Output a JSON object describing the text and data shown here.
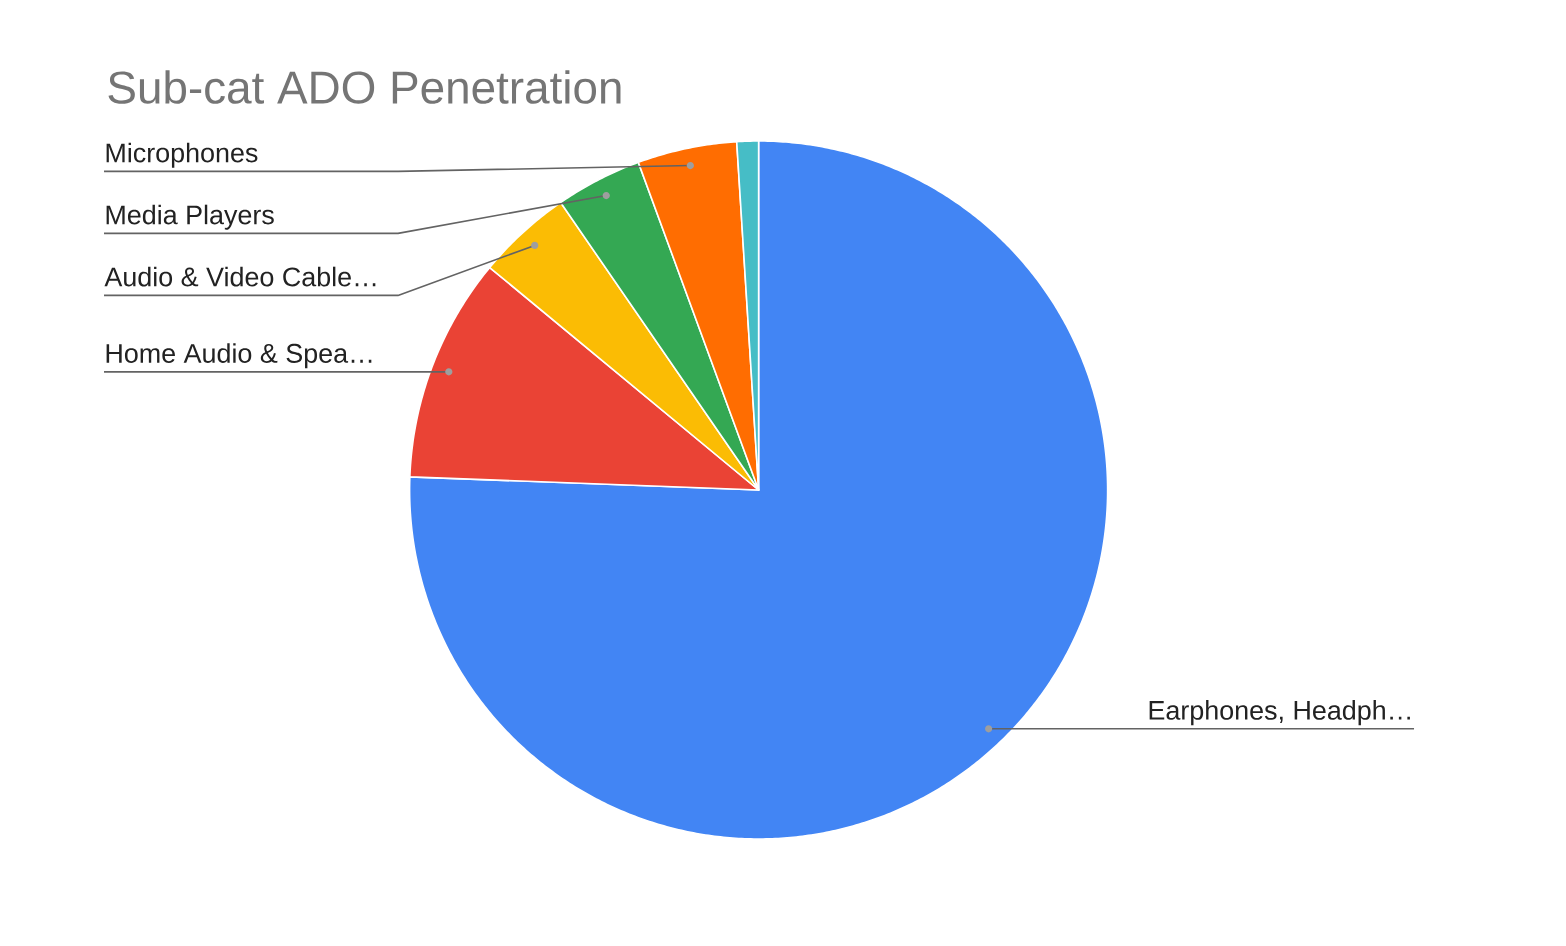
{
  "chart_data": {
    "type": "pie",
    "title": "Sub-cat ADO Penetration",
    "categories": [
      "Earphones, Headph…",
      "Home Audio & Spea…",
      "Audio & Video Cable…",
      "Media Players",
      "Microphones",
      null
    ],
    "values": [
      75.6,
      10.4,
      4.4,
      4.0,
      4.6,
      1.0
    ],
    "colors": [
      "#4285f4",
      "#ea4335",
      "#fbbc04",
      "#34a853",
      "#ff6d01",
      "#46bdc6"
    ]
  }
}
